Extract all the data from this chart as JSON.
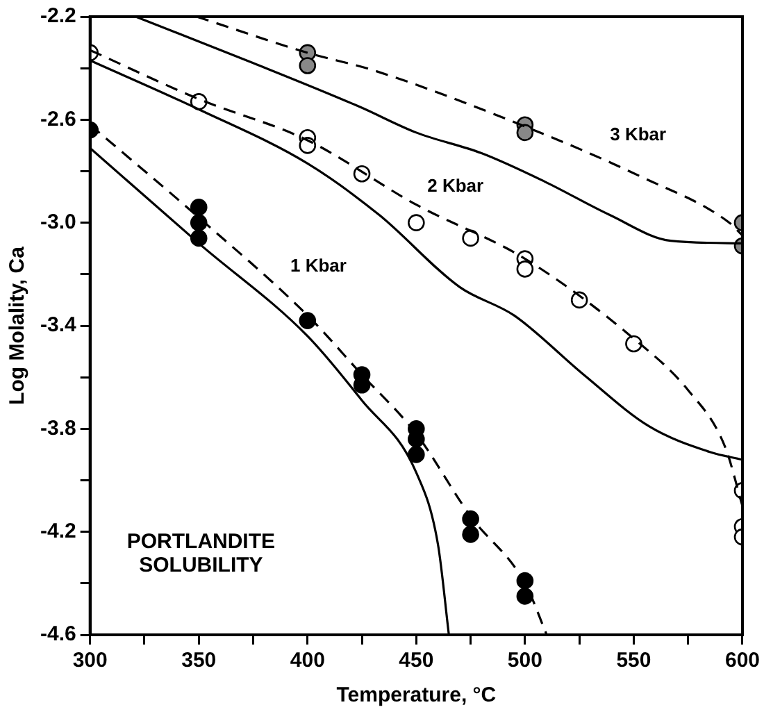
{
  "chart_data": {
    "type": "scatter",
    "xlabel": "Temperature, °C",
    "ylabel": "Log Molality, Ca",
    "xlim": [
      300,
      600
    ],
    "ylim": [
      -4.6,
      -2.2
    ],
    "xticks": [
      300,
      {
        "value": 325,
        "label": null
      },
      350,
      {
        "value": 375,
        "label": null
      },
      400,
      {
        "value": 425,
        "label": null
      },
      450,
      {
        "value": 475,
        "label": null
      },
      500,
      {
        "value": 525,
        "label": null
      },
      550,
      {
        "value": 575,
        "label": null
      },
      600
    ],
    "yticks": [
      -4.6,
      {
        "value": -4.4,
        "label": null
      },
      -4.2,
      {
        "value": -4,
        "label": null
      },
      -3.8,
      {
        "value": -3.6,
        "label": null
      },
      -3.4,
      {
        "value": -3.2,
        "label": null
      },
      {
        "value": -3,
        "label": "-3.0"
      },
      {
        "value": -2.8,
        "label": null
      },
      -2.6,
      {
        "value": -2.4,
        "label": null
      },
      -2.2
    ],
    "grid": false,
    "legend": false,
    "series": [
      {
        "type": "line",
        "line_style": "solid",
        "marker": "none",
        "color": "#000000",
        "x": [
          300,
          350,
          400,
          425,
          450,
          460,
          465
        ],
        "values": [
          -2.71,
          -3.08,
          -3.44,
          -3.69,
          -3.97,
          -4.25,
          -4.6
        ]
      },
      {
        "type": "line",
        "line_style": "dashed",
        "marker": "none",
        "color": "#000000",
        "x": [
          300,
          350,
          400,
          425,
          450,
          475,
          500,
          510
        ],
        "values": [
          -2.62,
          -2.98,
          -3.36,
          -3.59,
          -3.82,
          -4.14,
          -4.4,
          -4.6
        ]
      },
      {
        "type": "line",
        "line_style": "solid",
        "marker": "none",
        "color": "#000000",
        "x": [
          300,
          350,
          400,
          433,
          470,
          495,
          527,
          557,
          585,
          600
        ],
        "values": [
          -2.37,
          -2.56,
          -2.77,
          -2.97,
          -3.25,
          -3.36,
          -3.59,
          -3.79,
          -3.89,
          -3.92
        ]
      },
      {
        "type": "line",
        "line_style": "dashed",
        "marker": "none",
        "color": "#000000",
        "x": [
          300,
          350,
          400,
          450,
          500,
          550,
          575,
          592,
          600
        ],
        "values": [
          -2.33,
          -2.52,
          -2.68,
          -2.93,
          -3.14,
          -3.45,
          -3.65,
          -3.87,
          -4.1
        ]
      },
      {
        "type": "line",
        "line_style": "solid",
        "marker": "none",
        "color": "#000000",
        "x": [
          321,
          375,
          424,
          450,
          480,
          509,
          539,
          567,
          600
        ],
        "values": [
          -2.2,
          -2.38,
          -2.55,
          -2.65,
          -2.73,
          -2.84,
          -2.97,
          -3.07,
          -3.08
        ]
      },
      {
        "type": "line",
        "line_style": "dashed",
        "marker": "none",
        "color": "#000000",
        "x": [
          349,
          400,
          431,
          504,
          553,
          594,
          600
        ],
        "values": [
          -2.2,
          -2.34,
          -2.41,
          -2.64,
          -2.82,
          -3.0,
          -3.05
        ]
      },
      {
        "marker": "circle",
        "color": "#000000",
        "x": [
          300,
          350,
          350,
          350,
          400,
          425,
          425,
          450,
          450,
          450,
          475,
          475,
          500,
          500
        ],
        "values": [
          -2.64,
          -2.94,
          -3.0,
          -3.06,
          -3.38,
          -3.59,
          -3.63,
          -3.8,
          -3.84,
          -3.9,
          -4.15,
          -4.21,
          -4.39,
          -4.45
        ]
      },
      {
        "marker": "circle",
        "color": "#ffffff",
        "x": [
          300,
          350,
          400,
          400,
          425,
          450,
          475,
          500,
          500,
          525,
          550,
          600,
          600,
          600
        ],
        "values": [
          -2.34,
          -2.53,
          -2.67,
          -2.7,
          -2.81,
          -3.0,
          -3.06,
          -3.14,
          -3.18,
          -3.3,
          -3.47,
          -4.04,
          -4.18,
          -4.22
        ]
      },
      {
        "marker": "circle",
        "color": "#888888",
        "x": [
          400,
          400,
          500,
          500,
          600,
          600
        ],
        "values": [
          -2.34,
          -2.39,
          -2.62,
          -2.65,
          -3.0,
          -3.09
        ]
      }
    ],
    "annotations": [
      "1 Kbar",
      "2 Kbar",
      "3 Kbar",
      "PORTLANDITE\nSOLUBILITY"
    ]
  }
}
